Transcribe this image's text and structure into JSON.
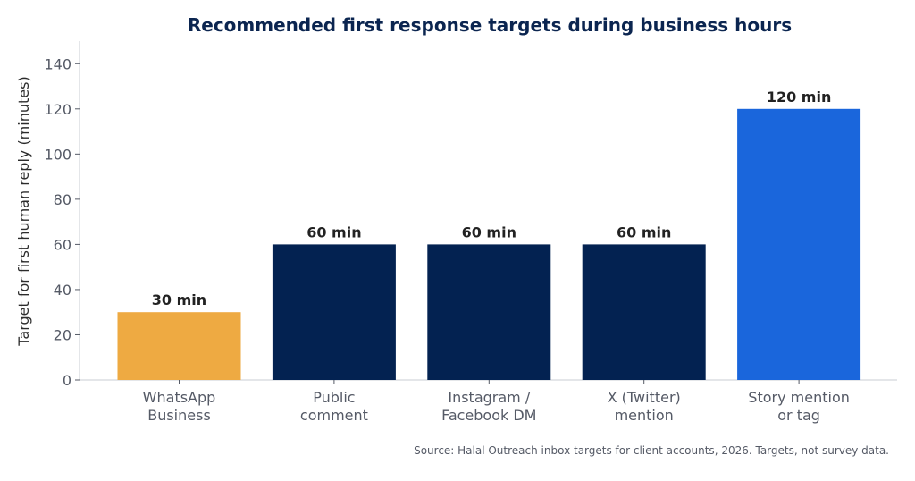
{
  "chart_data": {
    "type": "bar",
    "title": "Recommended first response targets during business hours",
    "ylabel": "Target for first human reply (minutes)",
    "xlabel": "",
    "ylim": [
      0,
      150
    ],
    "yticks": [
      0,
      20,
      40,
      60,
      80,
      100,
      120,
      140
    ],
    "grid": false,
    "categories": [
      [
        "WhatsApp",
        "Business"
      ],
      [
        "Public",
        "comment"
      ],
      [
        "Instagram /",
        "Facebook DM"
      ],
      [
        "X (Twitter)",
        "mention"
      ],
      [
        "Story mention",
        "or tag"
      ]
    ],
    "values": [
      30,
      60,
      60,
      60,
      120
    ],
    "data_labels": [
      "30 min",
      "60 min",
      "60 min",
      "60 min",
      "120 min"
    ],
    "colors": [
      "#eeaa42",
      "#032251",
      "#032251",
      "#032251",
      "#1a66dc"
    ],
    "source": "Source: Halal Outreach inbox targets for client accounts, 2026. Targets, not survey data."
  }
}
